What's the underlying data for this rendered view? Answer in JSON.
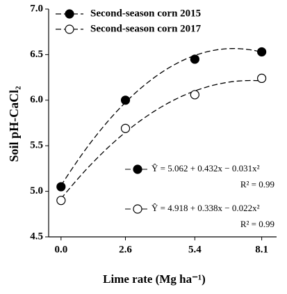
{
  "chart_data": {
    "type": "scatter",
    "x_label": "Lime rate (Mg ha⁻¹)",
    "y_label": "Soil pH-CaCl₂",
    "x": [
      0,
      2.6,
      5.4,
      8.1
    ],
    "series": [
      {
        "name": "Second-season corn 2015",
        "color": "#000000",
        "marker_fill": "#000000",
        "values": [
          5.05,
          6.0,
          6.45,
          6.53
        ],
        "fit": [
          5.062,
          0.432,
          -0.031
        ],
        "equation": "Ŷ = 5.062 + 0.432x − 0.031x²",
        "r_squared": "R² = 0.99"
      },
      {
        "name": "Second-season corn 2017",
        "color": "#000000",
        "marker_fill": "#ffffff",
        "values": [
          4.9,
          5.69,
          6.06,
          6.24
        ],
        "fit": [
          4.918,
          0.338,
          -0.022
        ],
        "equation": "Ŷ = 4.918 + 0.338x − 0.022x²",
        "r_squared": "R² = 0.99"
      }
    ],
    "xlim": [
      -0.5,
      8.7
    ],
    "xticks": [
      {
        "value": 0,
        "label": "0.0"
      },
      2.6,
      5.4,
      8.1
    ],
    "ylim": [
      4.5,
      7.0
    ],
    "yticks": [
      4.5,
      {
        "value": 5,
        "label": "5.0"
      },
      5.5,
      {
        "value": 6,
        "label": "6.0"
      },
      6.5,
      {
        "value": 7,
        "label": "7.0"
      }
    ],
    "grid": false,
    "legend": "upper left"
  }
}
